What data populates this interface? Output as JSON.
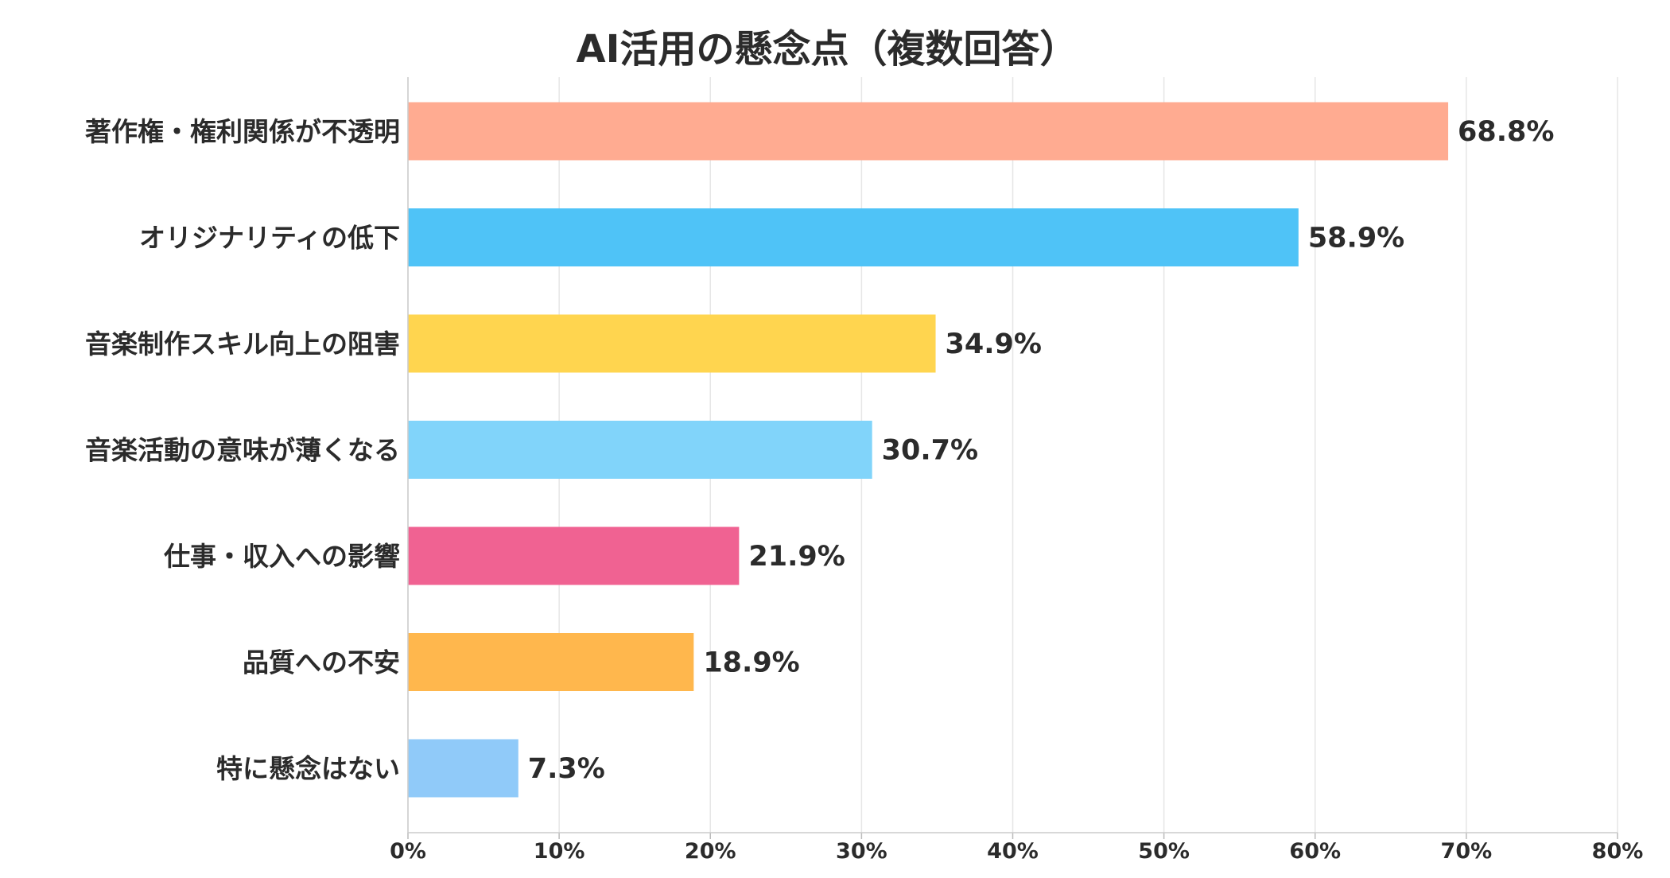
{
  "chart_data": {
    "type": "bar",
    "orientation": "horizontal",
    "title": "AI活用の懸念点（複数回答）",
    "xlabel": "",
    "ylabel": "",
    "xlim": [
      0,
      80
    ],
    "xticks": [
      0,
      10,
      20,
      30,
      40,
      50,
      60,
      70,
      80
    ],
    "xtick_labels": [
      "0%",
      "10%",
      "20%",
      "30%",
      "40%",
      "50%",
      "60%",
      "70%",
      "80%"
    ],
    "grid": "vertical",
    "categories": [
      "著作権・権利関係が不透明",
      "オリジナリティの低下",
      "音楽制作スキル向上の阻害",
      "音楽活動の意味が薄くなる",
      "仕事・収入への影響",
      "品質への不安",
      "特に懸念はない"
    ],
    "values": [
      68.8,
      58.9,
      34.9,
      30.7,
      21.9,
      18.9,
      7.3
    ],
    "value_labels": [
      "68.8%",
      "58.9%",
      "34.9%",
      "30.7%",
      "21.9%",
      "18.9%",
      "7.3%"
    ],
    "colors": [
      "#FFAB91",
      "#4FC3F7",
      "#FFD54F",
      "#81D4FA",
      "#F06292",
      "#FFB74D",
      "#90CAF9"
    ]
  }
}
